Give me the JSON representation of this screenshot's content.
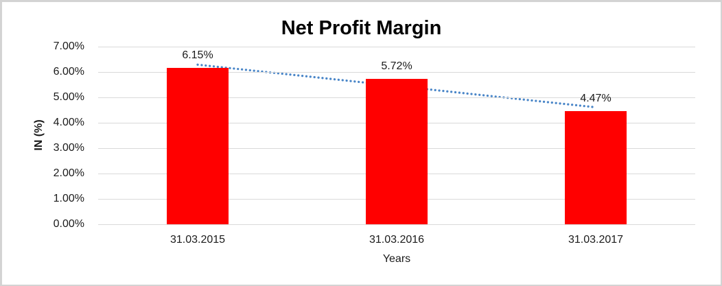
{
  "chart_data": {
    "type": "bar",
    "title": "Net Profit Margin",
    "categories": [
      "31.03.2015",
      "31.03.2016",
      "31.03.2017"
    ],
    "values": [
      6.15,
      5.72,
      4.47
    ],
    "data_labels": [
      "6.15%",
      "5.72%",
      "4.47%"
    ],
    "xlabel": "Years",
    "ylabel": "IN (%)",
    "ylim": [
      0,
      7
    ],
    "ytick_labels": [
      "0.00%",
      "1.00%",
      "2.00%",
      "3.00%",
      "4.00%",
      "5.00%",
      "6.00%",
      "7.00%"
    ],
    "grid": true,
    "legend_position": "none",
    "trendline": {
      "type": "linear",
      "style": "dotted",
      "start_value": 6.29,
      "end_value": 4.61
    },
    "colors": {
      "bar": "#ff0000",
      "trendline": "#4a86c8",
      "gridline": "#d9d9d9",
      "text": "#1a1a1a",
      "frame_border": "#d3d3d3"
    }
  }
}
